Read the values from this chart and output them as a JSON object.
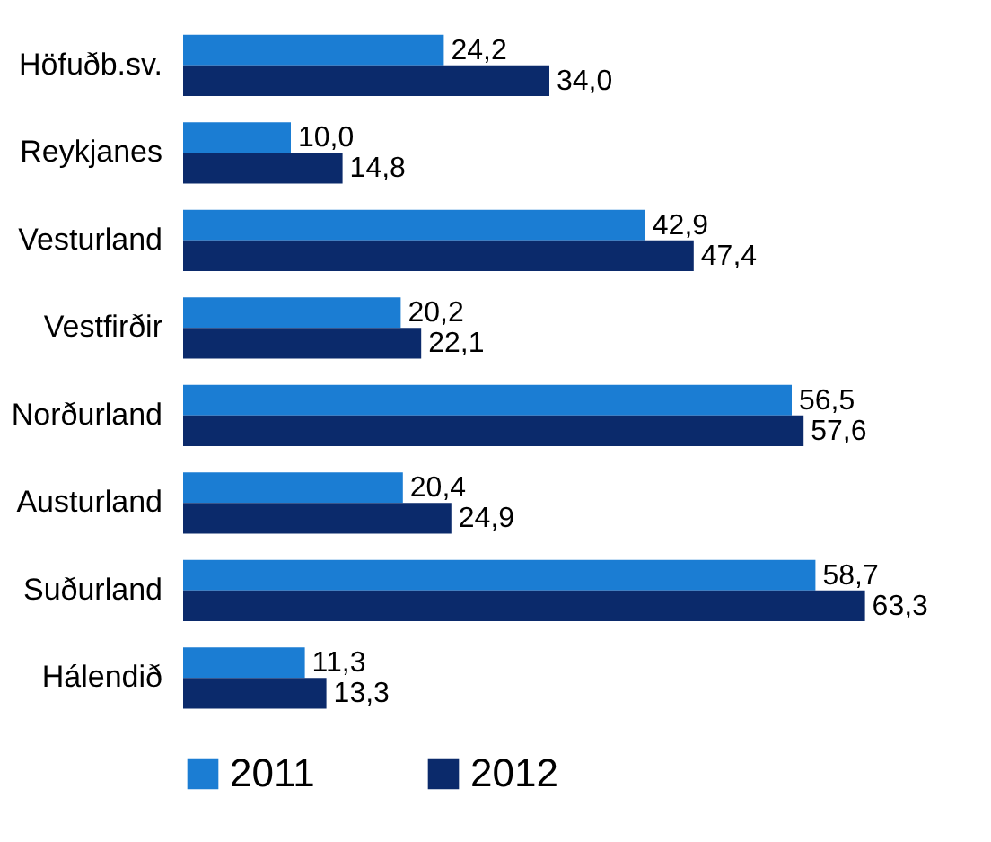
{
  "chart_data": {
    "type": "bar",
    "orientation": "horizontal",
    "legend": "bottom",
    "categories": [
      "Höfuðb.sv.",
      "Reykjanes",
      "Vesturland",
      "Vestfirðir",
      "Norðurland",
      "Austurland",
      "Suðurland",
      "Hálendið"
    ],
    "series": [
      {
        "name": "2011",
        "color": "#1b7dd3",
        "values": [
          24.2,
          10.0,
          42.9,
          20.2,
          56.5,
          20.4,
          58.7,
          11.3
        ],
        "value_labels": [
          "24,2",
          "10,0",
          "42,9",
          "20,2",
          "56,5",
          "20,4",
          "58,7",
          "11,3"
        ]
      },
      {
        "name": "2012",
        "color": "#0b2a6b",
        "values": [
          34.0,
          14.8,
          47.4,
          22.1,
          57.6,
          24.9,
          63.3,
          13.3
        ],
        "value_labels": [
          "34,0",
          "14,8",
          "47,4",
          "22,1",
          "57,6",
          "24,9",
          "63,3",
          "13,3"
        ]
      }
    ]
  }
}
